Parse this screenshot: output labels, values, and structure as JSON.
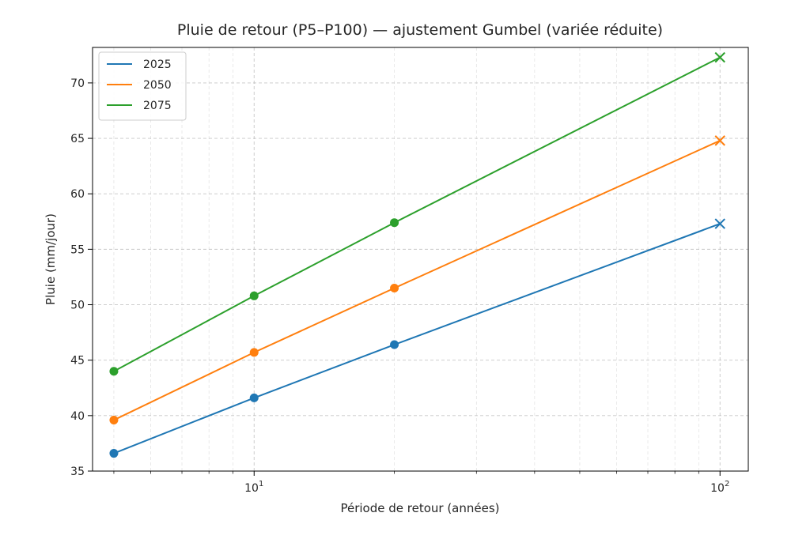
{
  "chart_data": {
    "type": "line",
    "title": "Pluie de retour (P5–P100) — ajustement Gumbel (variée réduite)",
    "xlabel": "Période de retour (années)",
    "ylabel": "Pluie (mm/jour)",
    "x_scale": "log",
    "x": [
      5,
      10,
      20,
      100
    ],
    "xlim": [
      4.5,
      115
    ],
    "ylim": [
      35,
      73.2
    ],
    "y_ticks": [
      35,
      40,
      45,
      50,
      55,
      60,
      65,
      70
    ],
    "x_major_ticks": [
      {
        "value": 10,
        "base": "10",
        "exp": "1"
      },
      {
        "value": 100,
        "base": "10",
        "exp": "2"
      }
    ],
    "grid": true,
    "legend_position": "upper-left",
    "series": [
      {
        "name": "2025",
        "color": "#1f77b4",
        "values": [
          36.6,
          41.6,
          46.4,
          57.3
        ]
      },
      {
        "name": "2050",
        "color": "#ff7f0e",
        "values": [
          39.6,
          45.7,
          51.5,
          64.8
        ]
      },
      {
        "name": "2075",
        "color": "#2ca02c",
        "values": [
          44.0,
          50.8,
          57.4,
          72.3
        ]
      }
    ],
    "markers": {
      "circle_points": [
        5,
        10,
        20
      ],
      "cross_points": [
        100
      ]
    }
  }
}
